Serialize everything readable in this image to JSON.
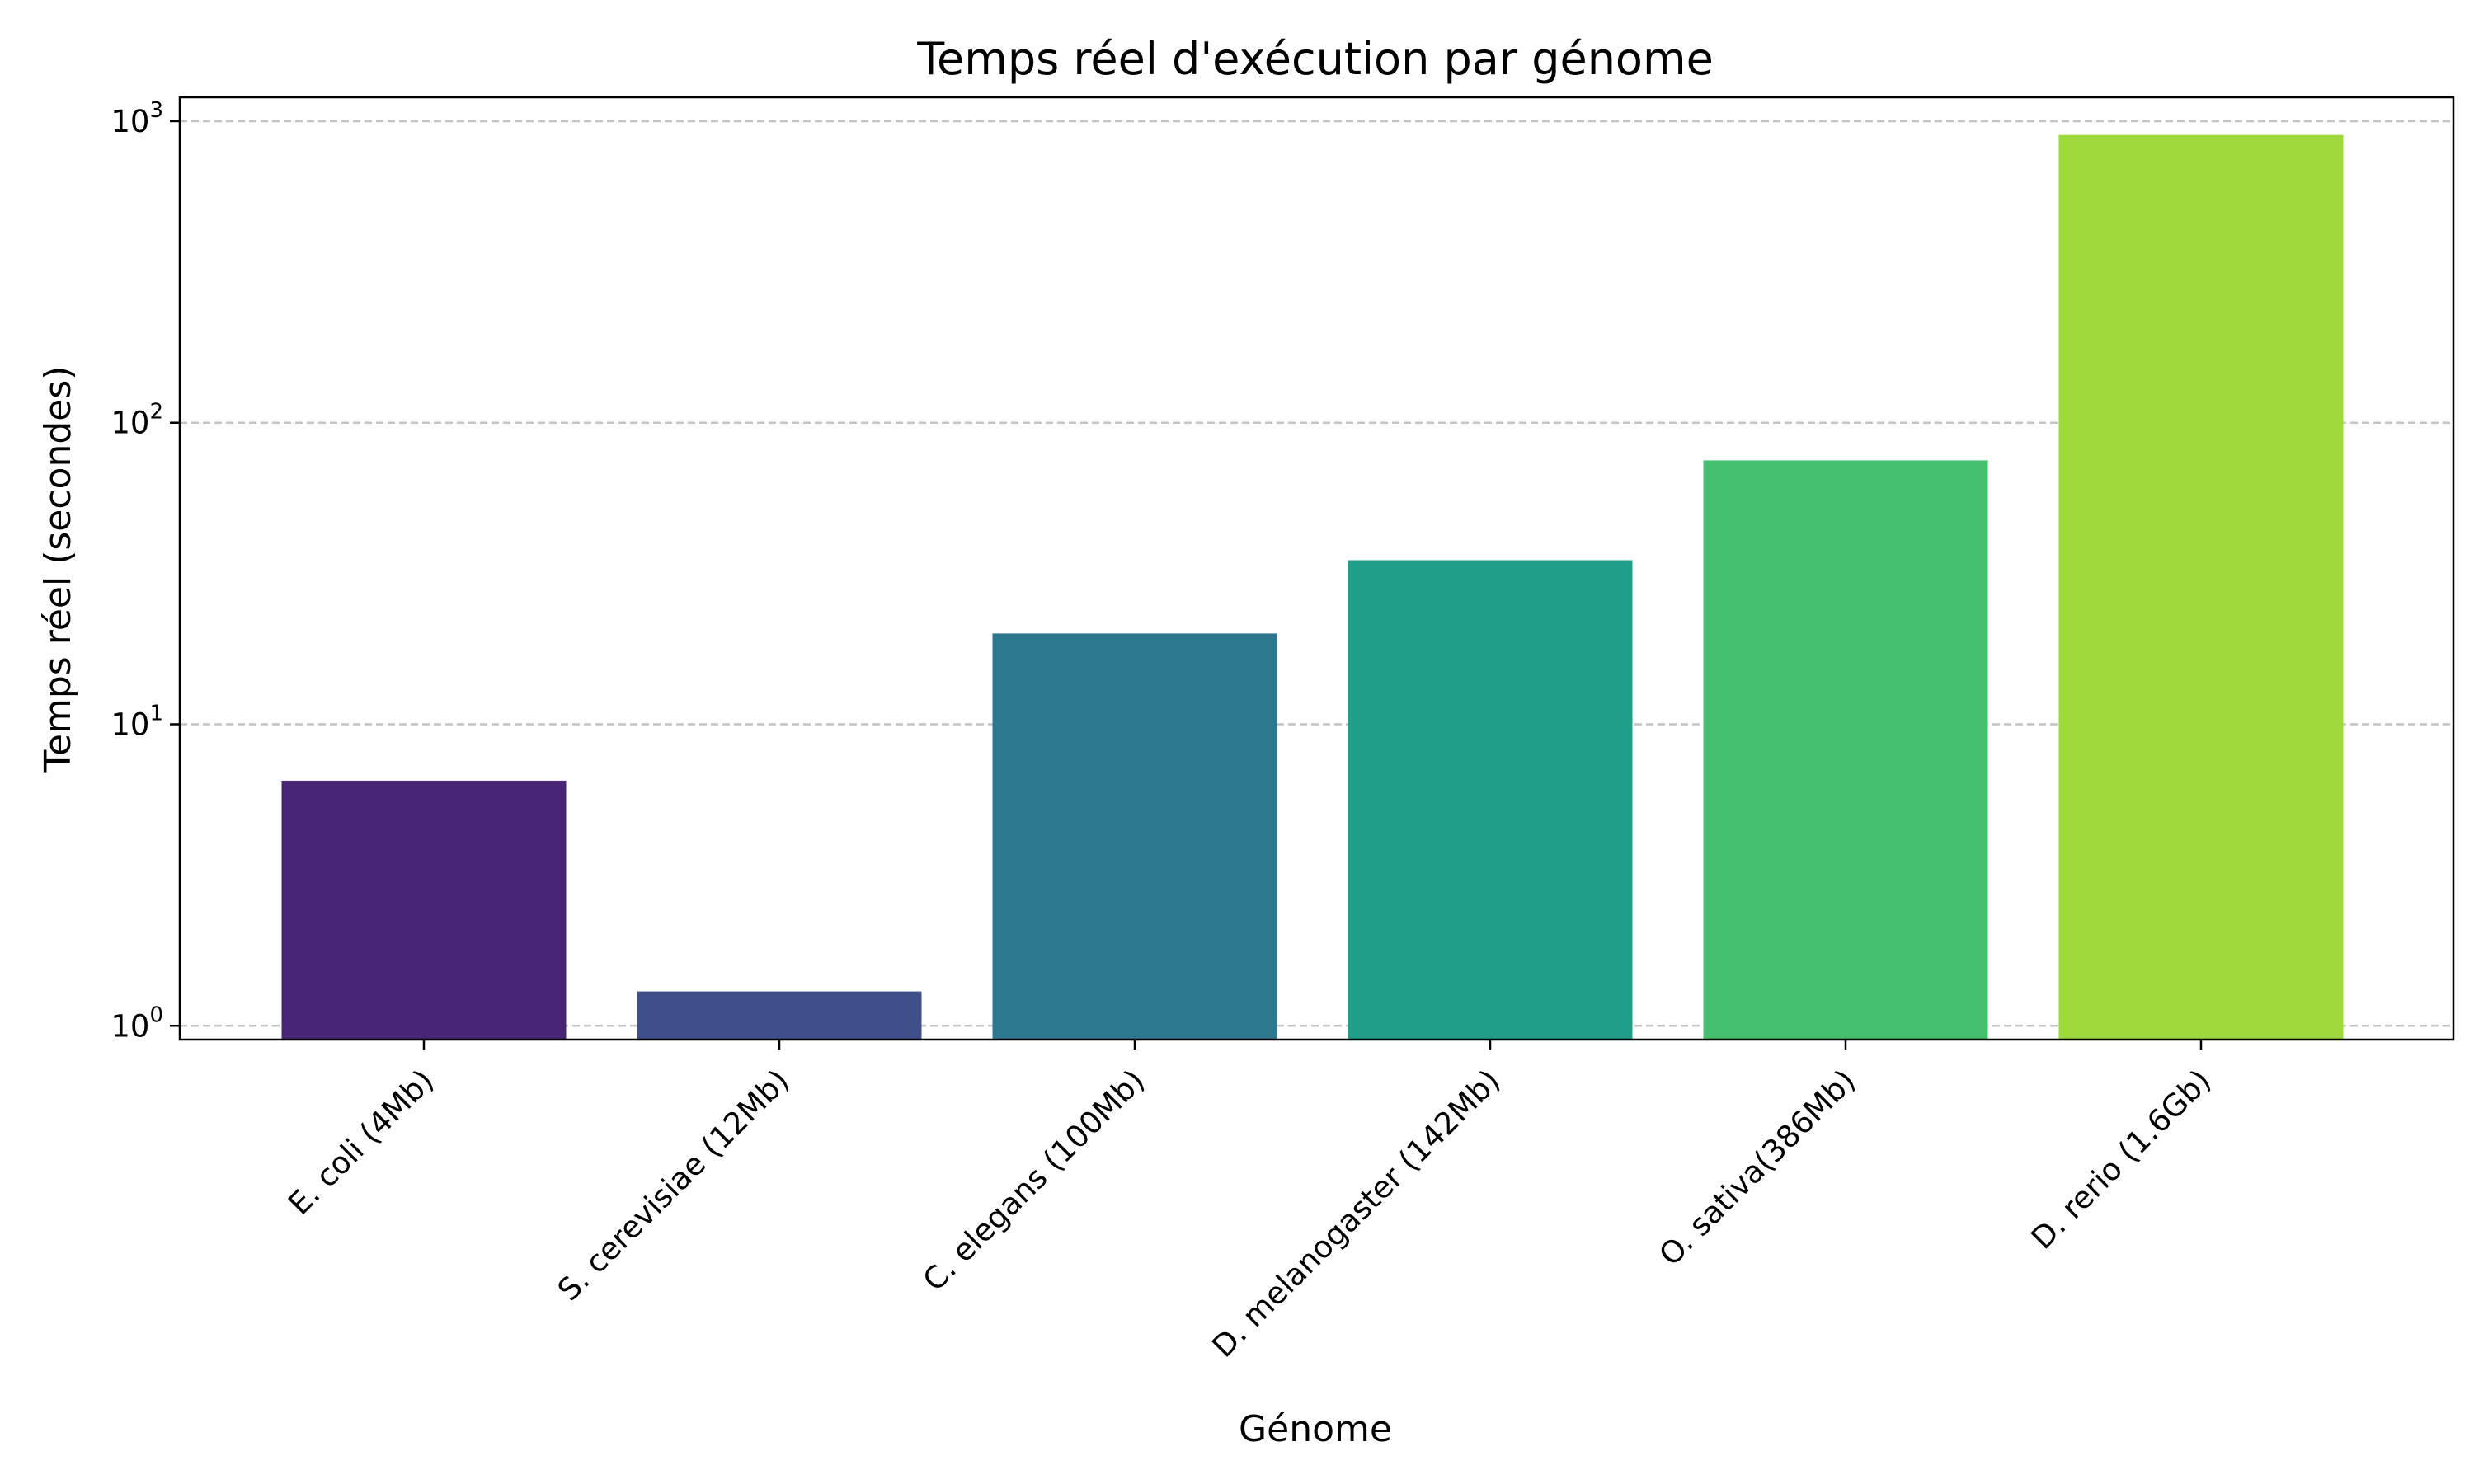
{
  "chart_data": {
    "type": "bar",
    "title": "Temps réel d'exécution par génome",
    "xlabel": "Génome",
    "ylabel": "Temps réel (secondes)",
    "yscale": "log",
    "ylim": [
      0.9,
      1200
    ],
    "y_ticks": [
      {
        "value": 1,
        "base": "10",
        "exponent": "0"
      },
      {
        "value": 10,
        "base": "10",
        "exponent": "1"
      },
      {
        "value": 100,
        "base": "10",
        "exponent": "2"
      },
      {
        "value": 1000,
        "base": "10",
        "exponent": "3"
      }
    ],
    "grid": "y, dashed",
    "categories": [
      "E. coli (4Mb)",
      "S. cerevisiae (12Mb)",
      "C. elegans (100Mb)",
      "D. melanogaster (142Mb)",
      "O. sativa(386Mb)",
      "D. rerio (1.6Gb)"
    ],
    "values": [
      6.5,
      1.3,
      20,
      35,
      75,
      900
    ],
    "colors": [
      "#482475",
      "#3e4f8a",
      "#2c788e",
      "#1f9e89",
      "#44bf70",
      "#9dd93b"
    ]
  }
}
